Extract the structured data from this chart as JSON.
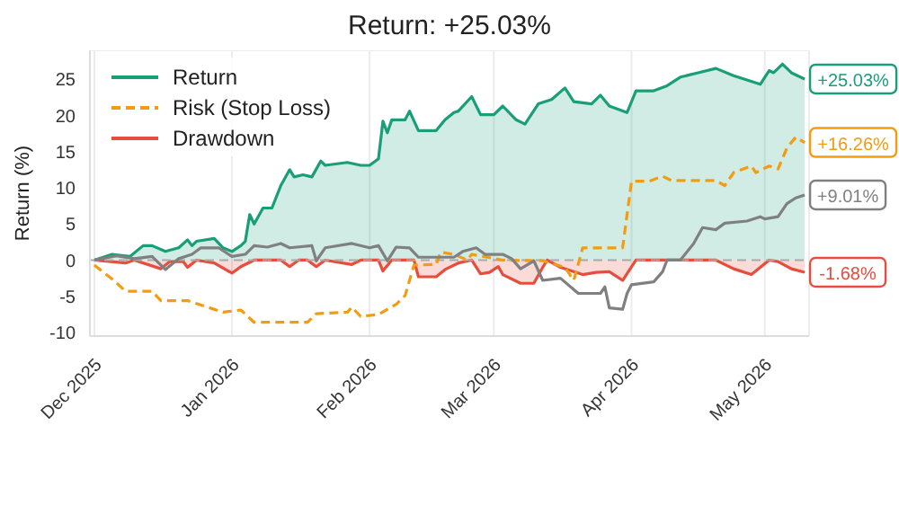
{
  "chart_data": {
    "type": "line",
    "title": "Return: +25.03%",
    "ylabel": "Return (%)",
    "xlim": [
      "2025-11-30",
      "2026-05-11"
    ],
    "xticks": [
      {
        "value": "2025-12-01",
        "label": "Dec 2025"
      },
      {
        "value": "2026-01-01",
        "label": "Jan 2026"
      },
      {
        "value": "2026-02-01",
        "label": "Feb 2026"
      },
      {
        "value": "2026-03-01",
        "label": "Mar 2026"
      },
      {
        "value": "2026-04-01",
        "label": "Apr 2026"
      },
      {
        "value": "2026-05-01",
        "label": "May 2026"
      }
    ],
    "ylim": [
      -10.5,
      29
    ],
    "yticks": [
      -10,
      -5,
      0,
      5,
      10,
      15,
      20,
      25
    ],
    "grid": true,
    "legend": "top left",
    "marker": "none",
    "ref_lines": [
      {
        "axis": "y",
        "value": 0,
        "label": null,
        "color": "#aaaaaa",
        "line_style": "dashed"
      }
    ],
    "series": [
      {
        "name": "Return",
        "type": "area",
        "color": "#1a9e77",
        "x": [
          "2025-12-01",
          "2025-12-05",
          "2025-12-09",
          "2025-12-12",
          "2025-12-14",
          "2025-12-17",
          "2025-12-20",
          "2025-12-22",
          "2025-12-23",
          "2025-12-24",
          "2025-12-28",
          "2025-12-30",
          "2026-01-01",
          "2026-01-03",
          "2026-01-04",
          "2026-01-05",
          "2026-01-06",
          "2026-01-08",
          "2026-01-10",
          "2026-01-12",
          "2026-01-14",
          "2026-01-15",
          "2026-01-17",
          "2026-01-19",
          "2026-01-21",
          "2026-01-22",
          "2026-01-27",
          "2026-01-30",
          "2026-02-01",
          "2026-02-03",
          "2026-02-04",
          "2026-02-05",
          "2026-02-06",
          "2026-02-09",
          "2026-02-10",
          "2026-02-12",
          "2026-02-16",
          "2026-02-18",
          "2026-02-20",
          "2026-02-21",
          "2026-02-24",
          "2026-02-26",
          "2026-03-01",
          "2026-03-03",
          "2026-03-06",
          "2026-03-08",
          "2026-03-11",
          "2026-03-14",
          "2026-03-17",
          "2026-03-19",
          "2026-03-23",
          "2026-03-25",
          "2026-03-27",
          "2026-03-31",
          "2026-04-02",
          "2026-04-06",
          "2026-04-09",
          "2026-04-12",
          "2026-04-16",
          "2026-04-20",
          "2026-04-24",
          "2026-04-27",
          "2026-04-30",
          "2026-05-02",
          "2026-05-03",
          "2026-05-05",
          "2026-05-07",
          "2026-05-10"
        ],
        "values": [
          0,
          0.8,
          0.5,
          2.0,
          2.0,
          1.2,
          1.7,
          2.8,
          2.0,
          2.6,
          3.0,
          1.7,
          1.2,
          2.0,
          2.6,
          6.3,
          5.0,
          7.2,
          7.2,
          10.3,
          12.5,
          11.5,
          11.8,
          11.5,
          13.7,
          13.1,
          13.5,
          13.1,
          13.1,
          14.0,
          19.2,
          17.6,
          19.4,
          19.4,
          20.6,
          17.9,
          17.9,
          19.4,
          20.4,
          20.6,
          22.6,
          20.1,
          20.1,
          21.3,
          19.4,
          18.8,
          21.6,
          22.2,
          23.8,
          21.9,
          21.6,
          22.8,
          21.3,
          20.4,
          23.4,
          23.4,
          24.1,
          25.3,
          25.9,
          26.5,
          25.5,
          24.9,
          24.3,
          26.2,
          25.9,
          27.1,
          25.9,
          25.03
        ],
        "value_labels": [
          null,
          null,
          null,
          null,
          null,
          null,
          null,
          null,
          null,
          null,
          null,
          null,
          null,
          null,
          null,
          null,
          null,
          null,
          null,
          null,
          null,
          null,
          null,
          null,
          null,
          null,
          null,
          null,
          null,
          null,
          null,
          null,
          null,
          null,
          null,
          null,
          null,
          null,
          null,
          null,
          null,
          null,
          null,
          null,
          null,
          null,
          null,
          null,
          null,
          null,
          null,
          null,
          null,
          null,
          null,
          null,
          null,
          null,
          null,
          null,
          null,
          null,
          null,
          null,
          null,
          null,
          null,
          "+25.03%"
        ]
      },
      {
        "name": "Risk (Stop Loss)",
        "line_style": "dashed",
        "color": "#f39c12",
        "x": [
          "2025-12-01",
          "2025-12-05",
          "2025-12-08",
          "2025-12-14",
          "2025-12-16",
          "2025-12-22",
          "2025-12-26",
          "2025-12-30",
          "2026-01-03",
          "2026-01-06",
          "2026-01-18",
          "2026-01-20",
          "2026-01-27",
          "2026-01-28",
          "2026-01-30",
          "2026-02-03",
          "2026-02-07",
          "2026-02-09",
          "2026-02-11",
          "2026-02-16",
          "2026-02-17",
          "2026-02-20",
          "2026-02-23",
          "2026-02-24",
          "2026-03-03",
          "2026-03-12",
          "2026-03-17",
          "2026-03-19",
          "2026-03-21",
          "2026-03-30",
          "2026-04-01",
          "2026-04-05",
          "2026-04-08",
          "2026-04-10",
          "2026-04-20",
          "2026-04-22",
          "2026-04-24",
          "2026-04-28",
          "2026-04-29",
          "2026-05-02",
          "2026-05-04",
          "2026-05-06",
          "2026-05-08",
          "2026-05-10"
        ],
        "values": [
          -0.7,
          -2.6,
          -4.3,
          -4.3,
          -5.6,
          -5.6,
          -6.4,
          -7.2,
          -6.9,
          -8.6,
          -8.6,
          -7.4,
          -7.2,
          -6.5,
          -7.8,
          -7.5,
          -6.1,
          -4.9,
          -0.7,
          -0.6,
          1.1,
          0.8,
          0,
          0.8,
          0,
          -0.1,
          -1.0,
          -2.8,
          1.7,
          1.7,
          10.9,
          10.9,
          11.6,
          11.0,
          11.0,
          10.3,
          12.1,
          13.0,
          12.1,
          13.0,
          12.6,
          15.5,
          17.0,
          16.26
        ],
        "value_labels": [
          null,
          null,
          null,
          null,
          null,
          null,
          null,
          null,
          null,
          null,
          null,
          null,
          null,
          null,
          null,
          null,
          null,
          null,
          null,
          null,
          null,
          null,
          null,
          null,
          null,
          null,
          null,
          null,
          null,
          null,
          null,
          null,
          null,
          null,
          null,
          null,
          null,
          null,
          null,
          null,
          null,
          null,
          null,
          "+16.26%"
        ]
      },
      {
        "name": "Drawdown",
        "type": "area",
        "color": "#e74c3c",
        "x": [
          "2025-12-01",
          "2025-12-08",
          "2025-12-10",
          "2025-12-16",
          "2025-12-18",
          "2025-12-21",
          "2025-12-22",
          "2025-12-24",
          "2025-12-28",
          "2026-01-01",
          "2026-01-03",
          "2026-01-06",
          "2026-01-12",
          "2026-01-14",
          "2026-01-16",
          "2026-01-18",
          "2026-01-20",
          "2026-01-22",
          "2026-01-28",
          "2026-01-30",
          "2026-02-03",
          "2026-02-04",
          "2026-02-06",
          "2026-02-11",
          "2026-02-12",
          "2026-02-16",
          "2026-02-18",
          "2026-02-21",
          "2026-02-24",
          "2026-02-26",
          "2026-02-28",
          "2026-03-02",
          "2026-03-03",
          "2026-03-07",
          "2026-03-10",
          "2026-03-12",
          "2026-03-13",
          "2026-03-16",
          "2026-03-21",
          "2026-03-24",
          "2026-03-27",
          "2026-03-30",
          "2026-04-02",
          "2026-04-20",
          "2026-04-24",
          "2026-04-28",
          "2026-05-02",
          "2026-05-04",
          "2026-05-07",
          "2026-05-10"
        ],
        "values": [
          0,
          -0.4,
          0,
          -1.2,
          -0.2,
          -0.2,
          -1.0,
          0,
          -0.4,
          -1.8,
          -0.9,
          0,
          0,
          -0.9,
          0,
          0,
          -0.9,
          0,
          -0.6,
          0,
          0,
          -1.5,
          0,
          0,
          -2.3,
          -2.3,
          -1.3,
          -0.4,
          0,
          -1.9,
          -1.7,
          -0.9,
          -2.0,
          -3.2,
          -3.2,
          -1.0,
          0,
          -1.0,
          -2.0,
          -1.7,
          -1.6,
          -2.8,
          0,
          0,
          -1.2,
          -2.0,
          0,
          -0.2,
          -1.2,
          -1.68
        ],
        "value_labels": [
          null,
          null,
          null,
          null,
          null,
          null,
          null,
          null,
          null,
          null,
          null,
          null,
          null,
          null,
          null,
          null,
          null,
          null,
          null,
          null,
          null,
          null,
          null,
          null,
          null,
          null,
          null,
          null,
          null,
          null,
          null,
          null,
          null,
          null,
          null,
          null,
          null,
          null,
          null,
          null,
          null,
          null,
          null,
          null,
          null,
          null,
          null,
          null,
          null,
          "-1.68%"
        ]
      },
      {
        "color": "#808080",
        "x": [
          "2025-12-01",
          "2025-12-06",
          "2025-12-10",
          "2025-12-14",
          "2025-12-17",
          "2025-12-20",
          "2025-12-23",
          "2025-12-25",
          "2025-12-29",
          "2026-01-01",
          "2026-01-04",
          "2026-01-06",
          "2026-01-09",
          "2026-01-12",
          "2026-01-14",
          "2026-01-19",
          "2026-01-20",
          "2026-01-22",
          "2026-01-28",
          "2026-02-01",
          "2026-02-03",
          "2026-02-05",
          "2026-02-07",
          "2026-02-10",
          "2026-02-12",
          "2026-02-20",
          "2026-02-22",
          "2026-02-25",
          "2026-02-27",
          "2026-03-03",
          "2026-03-05",
          "2026-03-07",
          "2026-03-10",
          "2026-03-12",
          "2026-03-16",
          "2026-03-20",
          "2026-03-25",
          "2026-03-26",
          "2026-03-27",
          "2026-03-30",
          "2026-03-31",
          "2026-04-01",
          "2026-04-06",
          "2026-04-08",
          "2026-04-09",
          "2026-04-12",
          "2026-04-15",
          "2026-04-17",
          "2026-04-20",
          "2026-04-22",
          "2026-04-27",
          "2026-04-30",
          "2026-05-01",
          "2026-05-04",
          "2026-05-06",
          "2026-05-08",
          "2026-05-10"
        ],
        "values": [
          0,
          0.6,
          0.2,
          0.5,
          -1.3,
          0.2,
          0.8,
          1.7,
          1.7,
          0.5,
          0.8,
          2.0,
          1.8,
          2.3,
          1.7,
          2.0,
          -0.1,
          1.7,
          2.3,
          1.7,
          2.0,
          -0.1,
          1.8,
          1.7,
          0.4,
          0.4,
          1.2,
          1.7,
          0.8,
          0.8,
          0.2,
          -1.2,
          -0.1,
          -2.8,
          -2.5,
          -4.6,
          -4.6,
          -3.7,
          -6.6,
          -6.8,
          -4.6,
          -3.4,
          -3.0,
          -1.6,
          0,
          0,
          2.3,
          4.5,
          4.2,
          5.1,
          5.4,
          6.0,
          5.7,
          6.0,
          7.8,
          8.6,
          9.01
        ],
        "value_labels": [
          null,
          null,
          null,
          null,
          null,
          null,
          null,
          null,
          null,
          null,
          null,
          null,
          null,
          null,
          null,
          null,
          null,
          null,
          null,
          null,
          null,
          null,
          null,
          null,
          null,
          null,
          null,
          null,
          null,
          null,
          null,
          null,
          null,
          null,
          null,
          null,
          null,
          null,
          null,
          null,
          null,
          null,
          null,
          null,
          null,
          null,
          null,
          null,
          null,
          null,
          null,
          null,
          null,
          null,
          null,
          null,
          "+9.01%"
        ]
      }
    ]
  }
}
